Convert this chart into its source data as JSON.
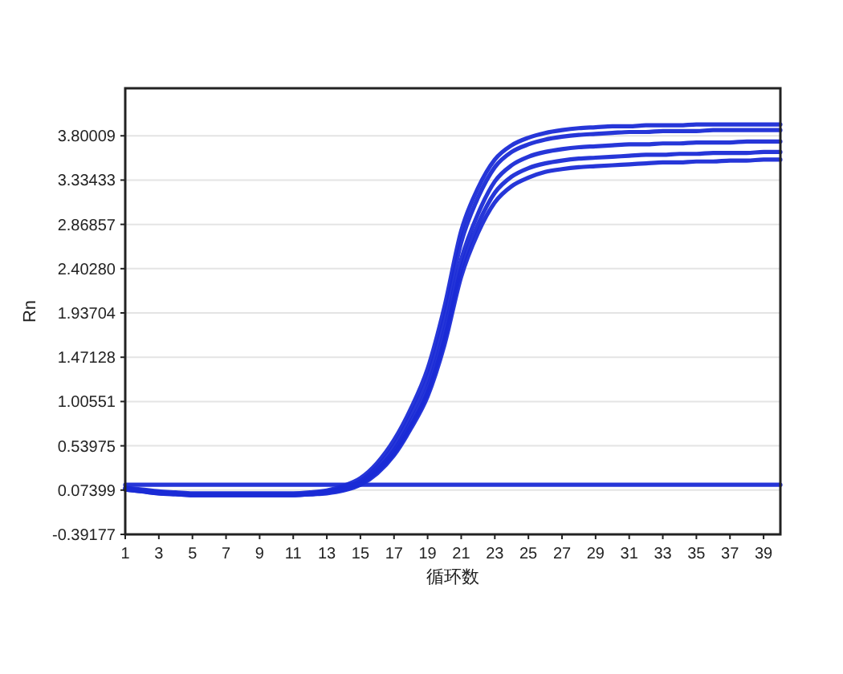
{
  "chart_data": {
    "type": "line",
    "xlabel": "循环数",
    "ylabel": "Rn",
    "x": [
      1,
      2,
      3,
      4,
      5,
      6,
      7,
      8,
      9,
      10,
      11,
      12,
      13,
      14,
      15,
      16,
      17,
      18,
      19,
      20,
      21,
      22,
      23,
      24,
      25,
      26,
      27,
      28,
      29,
      30,
      31,
      32,
      33,
      34,
      35,
      36,
      37,
      38,
      39,
      40
    ],
    "xlim": [
      1,
      40
    ],
    "xticks": [
      1,
      3,
      5,
      7,
      9,
      11,
      13,
      15,
      17,
      19,
      21,
      23,
      25,
      27,
      29,
      31,
      33,
      35,
      37,
      39
    ],
    "ylim": [
      -0.39177,
      4.3
    ],
    "yticks": [
      -0.39177,
      0.07399,
      0.53975,
      1.00551,
      1.47128,
      1.93704,
      {
        "value": 2.4028,
        "label": "2.40280"
      },
      2.86857,
      3.33433,
      3.80009
    ],
    "grid": "y",
    "series": [
      {
        "color": "#1a2bd6",
        "values": [
          0.1,
          0.08,
          0.06,
          0.05,
          0.04,
          0.04,
          0.04,
          0.04,
          0.04,
          0.04,
          0.04,
          0.05,
          0.07,
          0.12,
          0.2,
          0.36,
          0.6,
          0.93,
          1.35,
          2.0,
          2.8,
          3.25,
          3.55,
          3.7,
          3.78,
          3.83,
          3.86,
          3.88,
          3.89,
          3.9,
          3.9,
          3.91,
          3.91,
          3.91,
          3.92,
          3.92,
          3.92,
          3.92,
          3.92,
          3.92
        ]
      },
      {
        "color": "#1a2bd6",
        "values": [
          0.09,
          0.07,
          0.05,
          0.04,
          0.03,
          0.03,
          0.03,
          0.03,
          0.03,
          0.03,
          0.03,
          0.04,
          0.06,
          0.1,
          0.17,
          0.32,
          0.54,
          0.86,
          1.25,
          1.88,
          2.68,
          3.15,
          3.47,
          3.63,
          3.71,
          3.76,
          3.79,
          3.81,
          3.82,
          3.83,
          3.84,
          3.84,
          3.85,
          3.85,
          3.85,
          3.86,
          3.86,
          3.86,
          3.86,
          3.86
        ]
      },
      {
        "color": "#1a2bd6",
        "values": [
          0.08,
          0.06,
          0.04,
          0.03,
          0.02,
          0.02,
          0.02,
          0.02,
          0.02,
          0.02,
          0.02,
          0.03,
          0.05,
          0.09,
          0.15,
          0.29,
          0.49,
          0.79,
          1.15,
          1.74,
          2.5,
          2.98,
          3.32,
          3.49,
          3.58,
          3.63,
          3.66,
          3.68,
          3.69,
          3.7,
          3.71,
          3.71,
          3.72,
          3.72,
          3.73,
          3.73,
          3.73,
          3.74,
          3.74,
          3.74
        ]
      },
      {
        "color": "#1a2bd6",
        "values": [
          0.09,
          0.07,
          0.05,
          0.04,
          0.03,
          0.03,
          0.03,
          0.03,
          0.03,
          0.03,
          0.03,
          0.03,
          0.05,
          0.08,
          0.14,
          0.27,
          0.46,
          0.75,
          1.1,
          1.66,
          2.4,
          2.87,
          3.2,
          3.37,
          3.46,
          3.51,
          3.54,
          3.56,
          3.57,
          3.58,
          3.59,
          3.6,
          3.6,
          3.61,
          3.61,
          3.62,
          3.62,
          3.62,
          3.63,
          3.63
        ]
      },
      {
        "color": "#1a2bd6",
        "values": [
          0.08,
          0.06,
          0.04,
          0.03,
          0.02,
          0.02,
          0.02,
          0.02,
          0.02,
          0.02,
          0.02,
          0.03,
          0.04,
          0.07,
          0.13,
          0.25,
          0.44,
          0.72,
          1.06,
          1.6,
          2.32,
          2.78,
          3.1,
          3.27,
          3.36,
          3.42,
          3.45,
          3.47,
          3.48,
          3.49,
          3.5,
          3.51,
          3.52,
          3.52,
          3.53,
          3.53,
          3.54,
          3.54,
          3.55,
          3.55
        ]
      },
      {
        "color": "#1a2bd6",
        "values": [
          0.13,
          0.13,
          0.13,
          0.13,
          0.13,
          0.13,
          0.13,
          0.13,
          0.13,
          0.13,
          0.13,
          0.13,
          0.13,
          0.13,
          0.13,
          0.13,
          0.13,
          0.13,
          0.13,
          0.13,
          0.13,
          0.13,
          0.13,
          0.13,
          0.13,
          0.13,
          0.13,
          0.13,
          0.13,
          0.13,
          0.13,
          0.13,
          0.13,
          0.13,
          0.13,
          0.13,
          0.13,
          0.13,
          0.13,
          0.13
        ]
      }
    ]
  }
}
